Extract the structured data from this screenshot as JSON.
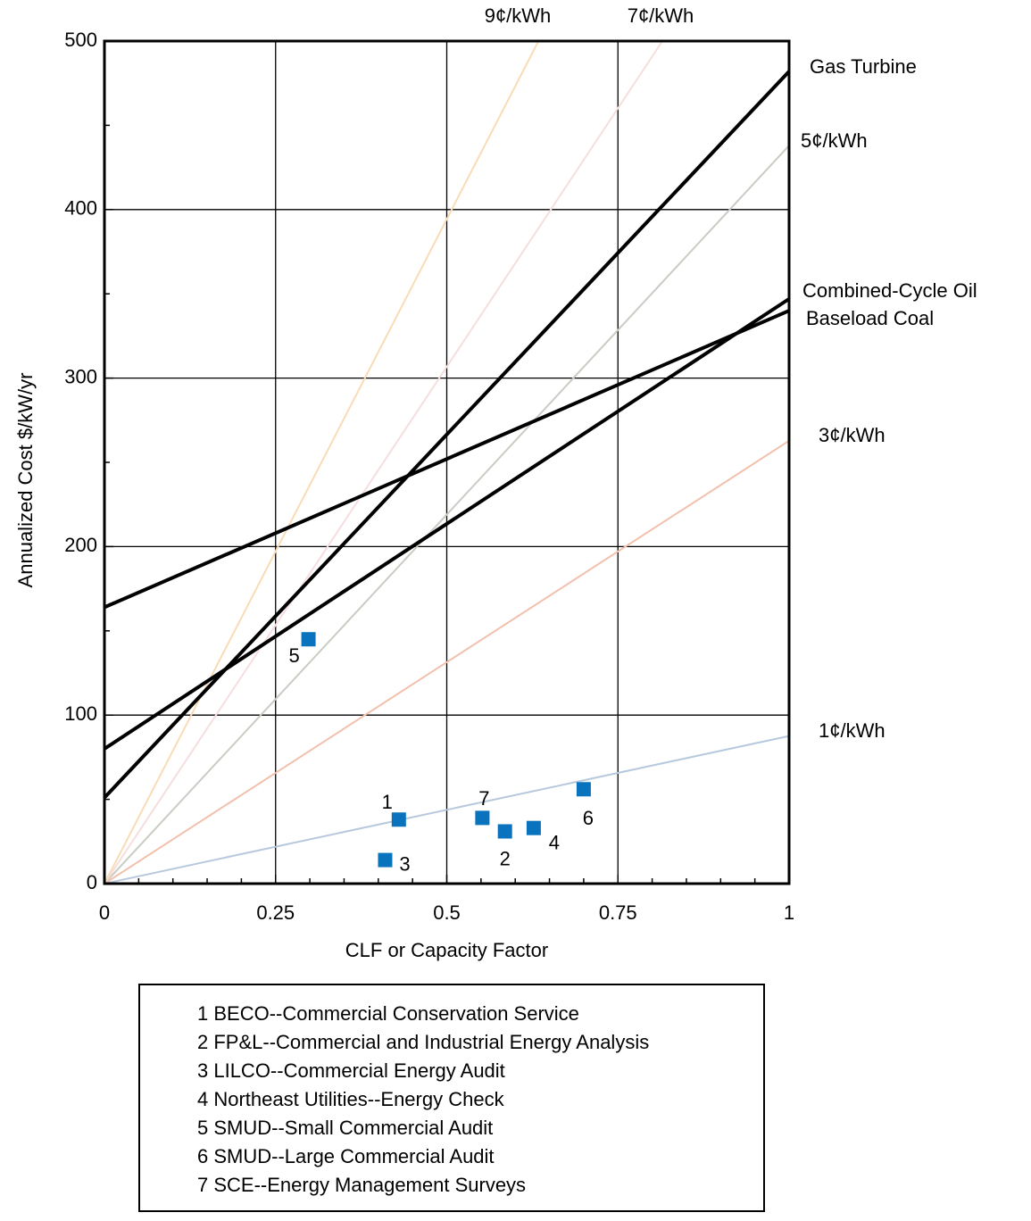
{
  "chart_data": {
    "type": "line",
    "title": "",
    "xlabel": "CLF or Capacity Factor",
    "ylabel": "Annualized Cost $/kW/yr",
    "xlim": [
      0,
      1
    ],
    "ylim": [
      0,
      500
    ],
    "x_ticks": [
      0,
      0.25,
      0.5,
      0.75,
      1
    ],
    "x_tick_labels": [
      "0",
      "0.25",
      "0.5",
      "0.75",
      "1"
    ],
    "y_ticks": [
      0,
      100,
      200,
      300,
      400,
      500
    ],
    "y_tick_labels": [
      "0",
      "100",
      "200",
      "300",
      "400",
      "500"
    ],
    "grid": true,
    "technology_lines": [
      {
        "name": "Gas Turbine",
        "x": [
          0,
          1
        ],
        "y": [
          51,
          482
        ]
      },
      {
        "name": "Combined-Cycle Oil",
        "x": [
          0,
          1
        ],
        "y": [
          80,
          347
        ]
      },
      {
        "name": "Baseload Coal",
        "x": [
          0,
          1
        ],
        "y": [
          164,
          340
        ]
      }
    ],
    "cost_per_kwh_lines": [
      {
        "name": "1¢/kWh",
        "x": [
          0,
          1
        ],
        "y": [
          0,
          87.6
        ],
        "color": "#b7c9dd"
      },
      {
        "name": "3¢/kWh",
        "x": [
          0,
          1
        ],
        "y": [
          0,
          262.8
        ],
        "color": "#f3c0ad"
      },
      {
        "name": "5¢/kWh",
        "x": [
          0,
          1
        ],
        "y": [
          0,
          438
        ],
        "color": "#c8cdc4"
      },
      {
        "name": "7¢/kWh",
        "x": [
          0,
          0.815
        ],
        "y": [
          0,
          500
        ],
        "color": "#f5dede"
      },
      {
        "name": "9¢/kWh",
        "x": [
          0,
          0.634
        ],
        "y": [
          0,
          500
        ],
        "color": "#f9dcb6"
      }
    ],
    "program_points": [
      {
        "label": "1",
        "x": 0.43,
        "y": 38
      },
      {
        "label": "2",
        "x": 0.585,
        "y": 31
      },
      {
        "label": "3",
        "x": 0.41,
        "y": 14
      },
      {
        "label": "4",
        "x": 0.627,
        "y": 33
      },
      {
        "label": "5",
        "x": 0.298,
        "y": 145
      },
      {
        "label": "6",
        "x": 0.7,
        "y": 56
      },
      {
        "label": "7",
        "x": 0.552,
        "y": 39
      }
    ],
    "point_color": "#0a73bd",
    "legend_placement": "bottom",
    "legend": [
      "1 BECO--Commercial Conservation Service",
      "2 FP&L--Commercial and Industrial Energy Analysis",
      "3 LILCO--Commercial Energy Audit",
      "4 Northeast Utilities--Energy Check",
      "5 SMUD--Small Commercial Audit",
      "6 SMUD--Large Commercial Audit",
      "7 SCE--Energy Management Surveys"
    ]
  }
}
